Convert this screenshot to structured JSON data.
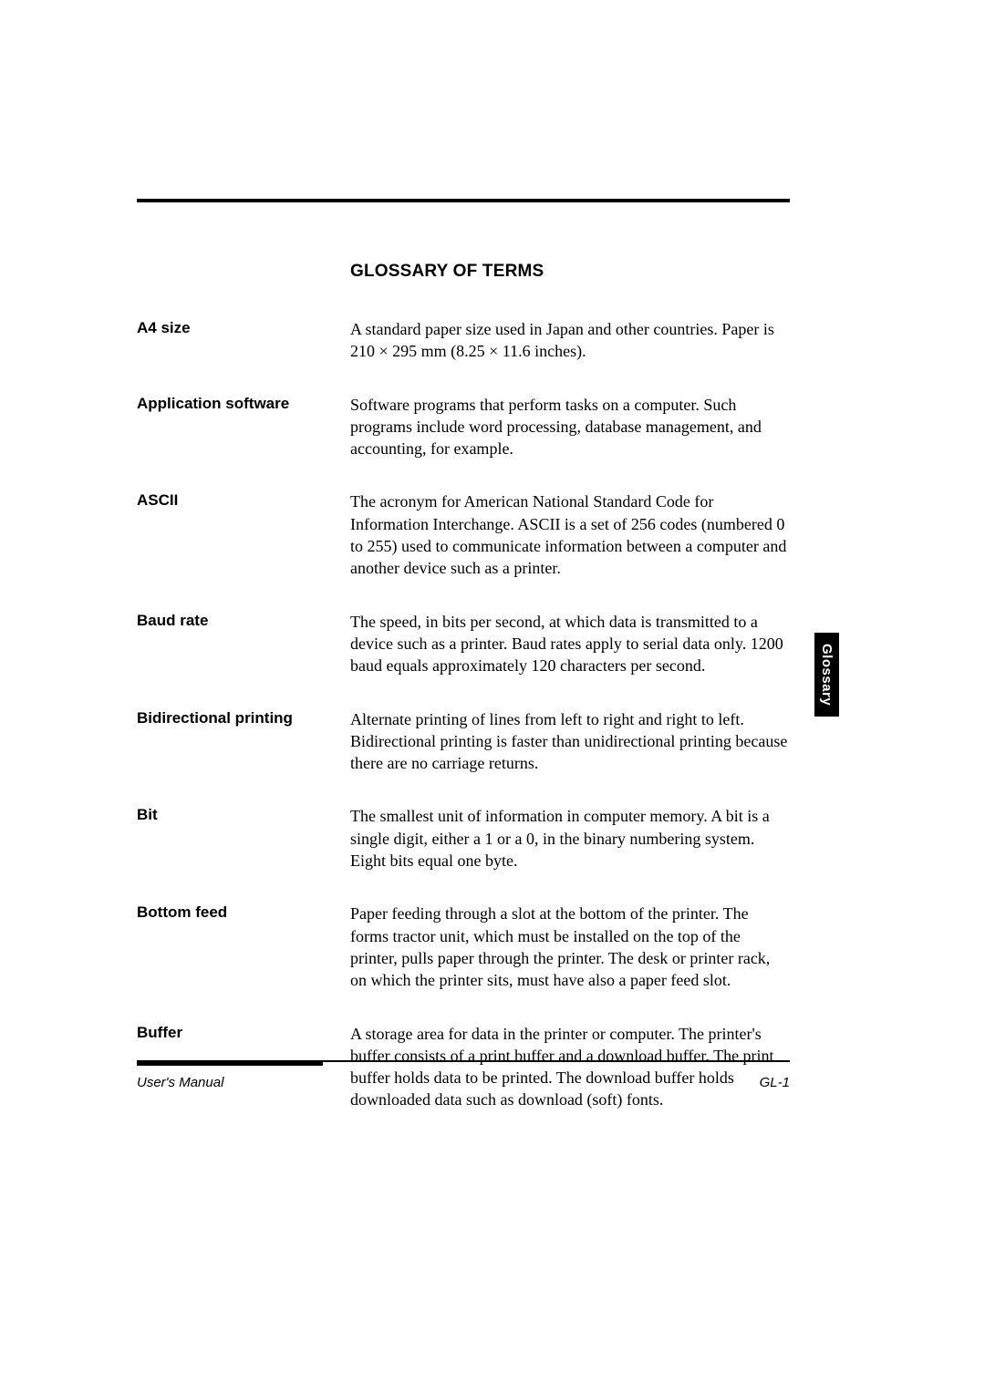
{
  "title": "GLOSSARY OF TERMS",
  "entries": [
    {
      "term": "A4 size",
      "def": "A standard paper size used in Japan and other countries. Paper is 210 × 295 mm (8.25 × 11.6 inches)."
    },
    {
      "term": "Application software",
      "def": "Software programs that perform tasks on a computer.  Such programs include word processing, database management, and accounting, for example."
    },
    {
      "term": "ASCII",
      "def": "The acronym for American National Standard Code for Information Interchange.  ASCII is a set of 256 codes (numbered 0 to 255) used to communicate information between a computer and another device such as a printer."
    },
    {
      "term": "Baud rate",
      "def": "The speed, in bits per second, at which data is transmitted to a device such as a printer.  Baud rates apply to serial data only. 1200 baud equals approximately 120 characters per second."
    },
    {
      "term": "Bidirectional printing",
      "def": "Alternate printing of lines from left to right and right to left. Bidirectional printing is faster than unidirectional printing because there are no carriage returns."
    },
    {
      "term": "Bit",
      "def": "The smallest unit of information in computer memory.  A bit is a single digit, either a 1 or a 0, in the binary numbering system. Eight bits equal one byte."
    },
    {
      "term": "Bottom feed",
      "def": "Paper feeding through a slot at the bottom of the printer.  The forms tractor unit, which must be installed on the top of the printer, pulls paper through the printer.  The desk or printer rack, on which the printer sits, must have also a paper feed slot."
    },
    {
      "term": "Buffer",
      "def": "A storage area for data in the printer or computer.  The printer's buffer consists of a print buffer and a download buffer.  The print buffer holds data to be printed.  The download buffer holds downloaded data such as download (soft) fonts."
    }
  ],
  "side_tab": "Glossary",
  "footer": {
    "left": "User's Manual",
    "right": "GL-1"
  },
  "colors": {
    "text": "#000000",
    "background": "#ffffff",
    "rule": "#000000",
    "tab_bg": "#000000",
    "tab_fg": "#ffffff"
  },
  "typography": {
    "title_fontsize": 19,
    "term_fontsize": 17,
    "def_fontsize": 18,
    "footer_fontsize": 15,
    "tab_fontsize": 15
  }
}
